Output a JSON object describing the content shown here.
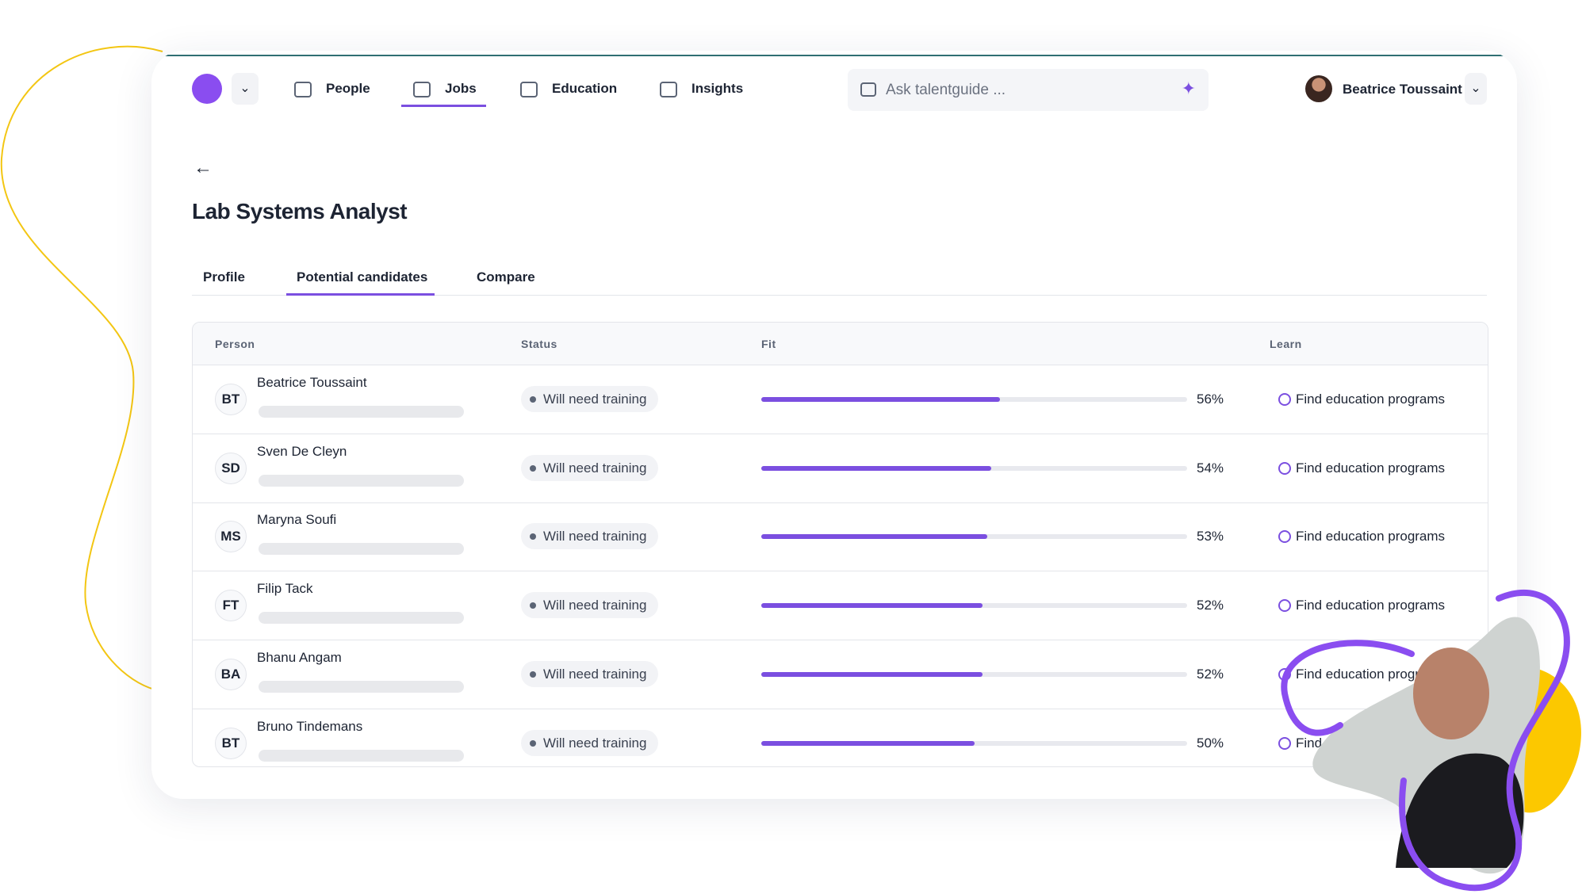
{
  "nav": {
    "items": [
      "People",
      "Jobs",
      "Education",
      "Insights"
    ],
    "active": 1,
    "search_placeholder": "Ask talentguide ...",
    "user": "Beatrice Toussaint"
  },
  "page": {
    "title": "Lab Systems Analyst",
    "tabs": [
      "Profile",
      "Potential candidates",
      "Compare"
    ],
    "active_tab": 1
  },
  "table": {
    "headers": [
      "Person",
      "Status",
      "Fit",
      "Learn"
    ],
    "rows": [
      {
        "initials": "BT",
        "name": "Beatrice Toussaint",
        "status": "Will need training",
        "fit": {
          "value": 56,
          "label": "56%"
        },
        "learn": "Find education programs"
      },
      {
        "initials": "SD",
        "name": "Sven De Cleyn",
        "status": "Will need training",
        "fit": {
          "value": 54,
          "label": "54%"
        },
        "learn": "Find education programs"
      },
      {
        "initials": "MS",
        "name": "Maryna Soufi",
        "status": "Will need training",
        "fit": {
          "value": 53,
          "label": "53%"
        },
        "learn": "Find education programs"
      },
      {
        "initials": "FT",
        "name": "Filip Tack",
        "status": "Will need training",
        "fit": {
          "value": 52,
          "label": "52%"
        },
        "learn": "Find education programs"
      },
      {
        "initials": "BA",
        "name": "Bhanu Angam",
        "status": "Will need training",
        "fit": {
          "value": 52,
          "label": "52%"
        },
        "learn": "Find education programs"
      },
      {
        "initials": "BT",
        "name": "Bruno Tindemans",
        "status": "Will need training",
        "fit": {
          "value": 50,
          "label": "50%"
        },
        "learn": "Find education programs"
      }
    ]
  }
}
